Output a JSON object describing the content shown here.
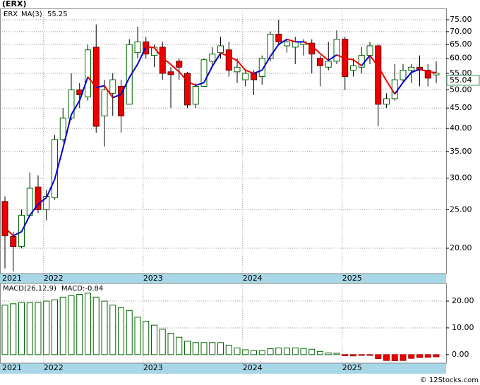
{
  "chart_data": [
    {
      "type": "candlestick",
      "title": "(ERX)",
      "ticker": "ERX",
      "log": true,
      "grid": true,
      "categories": [
        "2021",
        null,
        null,
        null,
        null,
        "2022",
        null,
        null,
        null,
        null,
        null,
        null,
        null,
        null,
        null,
        null,
        null,
        "2023",
        null,
        null,
        null,
        null,
        null,
        null,
        null,
        null,
        null,
        null,
        null,
        "2024",
        null,
        null,
        null,
        null,
        null,
        null,
        null,
        null,
        null,
        null,
        null,
        "2025",
        null,
        null,
        null,
        null,
        null,
        null,
        null,
        null,
        null,
        null,
        null
      ],
      "open": [
        26.2,
        21.4,
        20.2,
        24.2,
        28.5,
        25,
        26.8,
        37.5,
        42.5,
        50,
        48,
        64,
        43,
        49,
        51,
        46,
        62,
        66,
        61,
        64,
        55.5,
        59,
        55,
        46,
        51,
        59,
        62,
        63,
        55.5,
        53,
        55,
        54,
        60,
        69,
        64.5,
        64,
        65,
        65.5,
        60,
        57,
        59,
        67,
        56,
        57,
        61,
        64.5,
        46,
        47.5,
        53,
        56,
        57,
        56,
        54.5
      ],
      "high": [
        27,
        22,
        25,
        31,
        30.5,
        28,
        38.5,
        45,
        55,
        52,
        65,
        73,
        53,
        55,
        53,
        67,
        72,
        68,
        65,
        66,
        57,
        60,
        55.5,
        52,
        60,
        64,
        68,
        66,
        60,
        56,
        56,
        61,
        70,
        75,
        67,
        68,
        67,
        67,
        61,
        66,
        70.5,
        68,
        60,
        64,
        66,
        65,
        49,
        58,
        58,
        58,
        61,
        58,
        59
      ],
      "low": [
        17.8,
        17.5,
        20,
        24,
        24.5,
        23.5,
        26.5,
        37,
        42,
        45,
        47,
        39,
        36,
        43,
        39,
        46,
        60,
        60,
        57,
        53,
        45,
        53,
        45,
        45,
        51,
        57,
        60,
        54,
        52,
        51,
        48.5,
        51.5,
        59,
        65,
        62,
        58,
        61,
        55,
        51,
        56,
        58,
        50,
        54,
        55,
        58,
        40.5,
        45,
        47,
        52,
        52,
        51,
        51,
        52
      ],
      "close": [
        21.5,
        20.2,
        24.2,
        28.3,
        25,
        27,
        37.5,
        42.5,
        50,
        48.6,
        63,
        40.5,
        50,
        53,
        43,
        65,
        66,
        61.5,
        64,
        55,
        54.6,
        57,
        45.8,
        51,
        59.5,
        61.5,
        64.5,
        56,
        57,
        55,
        53,
        60,
        69,
        66,
        66,
        66,
        66,
        61.5,
        57.5,
        59,
        67,
        54,
        57.5,
        61,
        64.5,
        46,
        47.5,
        53,
        56,
        57,
        56,
        53.5,
        55.04
      ],
      "colors": {
        "up_fill": "#ffffff",
        "up_stroke": "#006400",
        "down_fill": "#ee0000",
        "wick": "#000000",
        "price_tag": "#2e8b57"
      },
      "ma": {
        "name": "MA(3)",
        "colors": {
          "up": "#0000cc",
          "down": "#ee0000"
        },
        "values": [
          22.5,
          21.5,
          22.0,
          24.2,
          25.8,
          26.8,
          29.8,
          35.7,
          43.3,
          47.0,
          53.9,
          50.7,
          51.2,
          47.8,
          48.7,
          53.7,
          58.0,
          64.2,
          63.8,
          60.2,
          57.9,
          55.5,
          52.5,
          51.3,
          52.1,
          57.3,
          61.8,
          60.7,
          59.2,
          56.0,
          55.0,
          56.0,
          60.7,
          65.0,
          67.0,
          66.0,
          66.0,
          64.5,
          61.7,
          59.3,
          61.2,
          60.0,
          59.5,
          57.5,
          61.0,
          57.2,
          52.7,
          48.8,
          52.2,
          55.3,
          56.3,
          55.5,
          55.25
        ]
      },
      "ylim": [
        17.27,
        80.06
      ],
      "yticks": [
        {
          "value": 20,
          "label": "20.00"
        },
        {
          "value": 25,
          "label": "25.00"
        },
        {
          "value": 30,
          "label": "30.00"
        },
        {
          "value": 35,
          "label": "35.00"
        },
        {
          "value": 40,
          "label": "40.00"
        },
        {
          "value": 45,
          "label": "45.00"
        },
        {
          "value": 50,
          "label": "50.00"
        },
        {
          "value": 55,
          "label": "55.00"
        },
        {
          "value": 60,
          "label": "60.00"
        },
        {
          "value": 65,
          "label": "65.00"
        },
        {
          "value": 70,
          "label": "70.00"
        },
        {
          "value": 75,
          "label": "75.00"
        }
      ]
    },
    {
      "type": "bar",
      "legend": [
        "MACD(26,12,9)",
        "MACD:-0.84"
      ],
      "grid": true,
      "source": "© 12Stocks.com",
      "categories": [
        "2021",
        null,
        null,
        null,
        null,
        "2022",
        null,
        null,
        null,
        null,
        null,
        null,
        null,
        null,
        null,
        null,
        null,
        "2023",
        null,
        null,
        null,
        null,
        null,
        null,
        null,
        null,
        null,
        null,
        null,
        "2024",
        null,
        null,
        null,
        null,
        null,
        null,
        null,
        null,
        null,
        null,
        null,
        "2025",
        null,
        null,
        null,
        null,
        null,
        null,
        null,
        null,
        null,
        null,
        null
      ],
      "values": [
        18.5,
        19,
        19.5,
        19.5,
        19.5,
        20,
        20.5,
        21.5,
        22,
        22.5,
        23,
        21.5,
        20,
        18.5,
        17.5,
        16.5,
        14,
        12.5,
        11,
        9.5,
        8,
        6.5,
        5,
        4.5,
        4.5,
        4.5,
        4.5,
        3.5,
        2.5,
        1.8,
        1.5,
        1.5,
        2.2,
        2.5,
        2.5,
        2.5,
        2.3,
        2,
        1.2,
        0.6,
        0.5,
        -0.4,
        -0.5,
        -0.3,
        -0.3,
        -1.5,
        -2.2,
        -2.3,
        -2.2,
        -1.4,
        -1.1,
        -1,
        -0.84
      ],
      "colors": {
        "pos_stroke": "#006400",
        "pos_fill": "#ffffff",
        "neg_fill": "#ee0000",
        "legend": "#0000cc"
      },
      "ylim": [
        -3.2,
        26.6
      ],
      "yticks": [
        {
          "value": 0,
          "label": "0.00"
        },
        {
          "value": 10,
          "label": "10.00"
        },
        {
          "value": 20,
          "label": "20.00"
        }
      ]
    }
  ]
}
